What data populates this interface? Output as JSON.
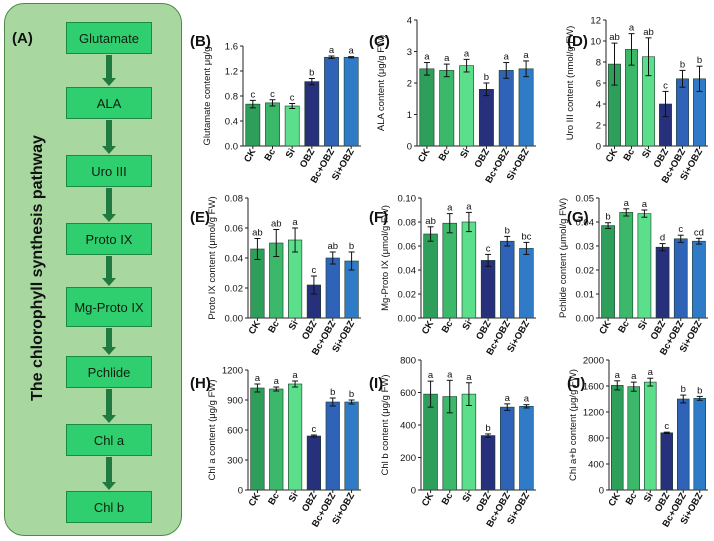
{
  "pathway": {
    "panel_label": "(A)",
    "title": "The chlorophyll synthesis pathway",
    "steps": [
      "Glutamate",
      "ALA",
      "Uro III",
      "Proto IX",
      "Mg-Proto IX",
      "Pchlide",
      "Chl a",
      "Chl b"
    ]
  },
  "colors": {
    "pathway_bg": "#a8d8a0",
    "step_fill": "#2fcf6f",
    "arrow": "#1e7a3f",
    "bars": [
      "#2e9e5b",
      "#3cb86a",
      "#5cdf8a",
      "#27307a",
      "#2e63b8",
      "#2f7bc8"
    ]
  },
  "chart_data": [
    {
      "panel": "(B)",
      "type": "bar",
      "ylabel": "Glutamate content μg/g",
      "categories": [
        "CK",
        "Bc",
        "Si",
        "OBZ",
        "Bc+OBZ",
        "Si+OBZ"
      ],
      "values": [
        0.67,
        0.69,
        0.64,
        1.03,
        1.42,
        1.42
      ],
      "errors": [
        0.06,
        0.05,
        0.04,
        0.05,
        0.02,
        0.01
      ],
      "letters": [
        "c",
        "c",
        "c",
        "b",
        "a",
        "a"
      ],
      "ylim": [
        0,
        1.6
      ],
      "yticks": [
        "0.0",
        "0.4",
        "0.8",
        "1.2",
        "1.6"
      ]
    },
    {
      "panel": "(C)",
      "type": "bar",
      "ylabel": "ALA content (μg/g FW)",
      "categories": [
        "CK",
        "Bc",
        "Si",
        "OBZ",
        "Bc+OBZ",
        "Si+OBZ"
      ],
      "values": [
        2.45,
        2.4,
        2.55,
        1.8,
        2.4,
        2.45
      ],
      "errors": [
        0.2,
        0.2,
        0.2,
        0.2,
        0.25,
        0.25
      ],
      "letters": [
        "a",
        "a",
        "a",
        "b",
        "a",
        "a"
      ],
      "ylim": [
        0,
        4
      ],
      "yticks": [
        "0",
        "1",
        "2",
        "3",
        "4"
      ]
    },
    {
      "panel": "(D)",
      "type": "bar",
      "ylabel": "Uro III content (nmol/g FW)",
      "categories": [
        "CK",
        "Bc",
        "Si",
        "OBZ",
        "Bc+OBZ",
        "Si+OBZ"
      ],
      "values": [
        7.8,
        9.2,
        8.5,
        4.0,
        6.4,
        6.4
      ],
      "errors": [
        2.0,
        1.5,
        1.8,
        1.2,
        0.8,
        1.2
      ],
      "letters": [
        "ab",
        "a",
        "ab",
        "c",
        "b",
        "b"
      ],
      "ylim": [
        0,
        12
      ],
      "yticks": [
        "0",
        "2",
        "4",
        "6",
        "8",
        "10",
        "12"
      ]
    },
    {
      "panel": "(E)",
      "type": "bar",
      "ylabel": "Proto IX content (μmol/g FW)",
      "categories": [
        "CK",
        "Bc",
        "Si",
        "OBZ",
        "Bc+OBZ",
        "Si+OBZ"
      ],
      "values": [
        0.046,
        0.05,
        0.052,
        0.022,
        0.04,
        0.038
      ],
      "errors": [
        0.007,
        0.009,
        0.008,
        0.006,
        0.004,
        0.006
      ],
      "letters": [
        "ab",
        "ab",
        "a",
        "c",
        "ab",
        "b"
      ],
      "ylim": [
        0,
        0.08
      ],
      "yticks": [
        "0.00",
        "0.02",
        "0.04",
        "0.06",
        "0.08"
      ]
    },
    {
      "panel": "(F)",
      "type": "bar",
      "ylabel": "Mg-Proto IX (μmol/g FW)",
      "categories": [
        "CK",
        "Bc",
        "Si",
        "OBZ",
        "Bc+OBZ",
        "Si+OBZ"
      ],
      "values": [
        0.07,
        0.079,
        0.08,
        0.048,
        0.064,
        0.058
      ],
      "errors": [
        0.006,
        0.008,
        0.008,
        0.005,
        0.004,
        0.005
      ],
      "letters": [
        "ab",
        "a",
        "a",
        "c",
        "b",
        "bc"
      ],
      "ylim": [
        0,
        0.1
      ],
      "yticks": [
        "0.00",
        "0.02",
        "0.04",
        "0.06",
        "0.08",
        "0.10"
      ]
    },
    {
      "panel": "(G)",
      "type": "bar",
      "ylabel": "Pchlide content (μmol/g FW)",
      "categories": [
        "CK",
        "Bc",
        "Si",
        "OBZ",
        "Bc+OBZ",
        "Si+OBZ"
      ],
      "values": [
        0.0385,
        0.044,
        0.0435,
        0.0295,
        0.033,
        0.032
      ],
      "errors": [
        0.0012,
        0.0015,
        0.0015,
        0.0015,
        0.0015,
        0.0012
      ],
      "letters": [
        "b",
        "a",
        "a",
        "d",
        "c",
        "cd"
      ],
      "ylim": [
        0,
        0.05
      ],
      "yticks": [
        "0.00",
        "0.01",
        "0.02",
        "0.03",
        "0.04",
        "0.05"
      ]
    },
    {
      "panel": "(H)",
      "type": "bar",
      "ylabel": "Chl a content (μg/g FW)",
      "categories": [
        "CK",
        "Bc",
        "Si",
        "OBZ",
        "Bc+OBZ",
        "Si+OBZ"
      ],
      "values": [
        1020,
        1010,
        1060,
        540,
        880,
        880
      ],
      "errors": [
        40,
        20,
        30,
        10,
        40,
        20
      ],
      "letters": [
        "a",
        "a",
        "a",
        "c",
        "b",
        "b"
      ],
      "ylim": [
        0,
        1200
      ],
      "yticks": [
        "0",
        "300",
        "600",
        "900",
        "1200"
      ]
    },
    {
      "panel": "(I)",
      "type": "bar",
      "ylabel": "Chl b content (μg/g FW)",
      "categories": [
        "CK",
        "Bc",
        "Si",
        "OBZ",
        "Bc+OBZ",
        "Si+OBZ"
      ],
      "values": [
        590,
        575,
        590,
        335,
        510,
        515
      ],
      "errors": [
        80,
        100,
        70,
        10,
        20,
        10
      ],
      "letters": [
        "a",
        "a",
        "a",
        "b",
        "a",
        "a"
      ],
      "ylim": [
        0,
        800
      ],
      "yticks": [
        "0",
        "200",
        "400",
        "600",
        "800"
      ]
    },
    {
      "panel": "(J)",
      "type": "bar",
      "ylabel": "Chl a+b content (μg/g FW)",
      "categories": [
        "CK",
        "Bc",
        "Si",
        "OBZ",
        "Bc+OBZ",
        "Si+OBZ"
      ],
      "values": [
        1610,
        1590,
        1660,
        880,
        1400,
        1410
      ],
      "errors": [
        70,
        70,
        60,
        10,
        60,
        30
      ],
      "letters": [
        "a",
        "a",
        "a",
        "c",
        "b",
        "b"
      ],
      "ylim": [
        0,
        2000
      ],
      "yticks": [
        "0",
        "400",
        "800",
        "1200",
        "1600",
        "2000"
      ]
    }
  ]
}
